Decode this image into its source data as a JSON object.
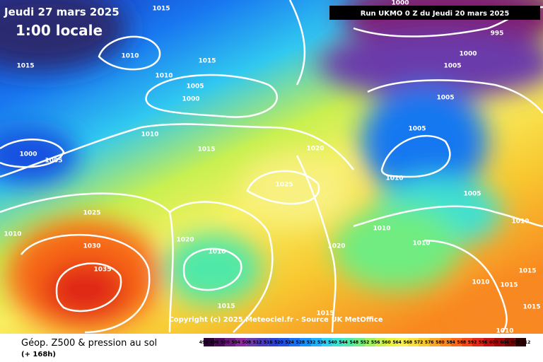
{
  "header": {
    "date": "Jeudi 27 mars 2025",
    "time": "1:00 locale",
    "run": "Run UKMO 0 Z du Jeudi 20 mars 2025"
  },
  "copyright": "Copyright (c) 2025 Meteociel.fr - Source UK MetOffice",
  "legend": {
    "title": "Géop. Z500 & pression au sol",
    "subtitle": "(+ 168h)",
    "ticks": [
      492,
      496,
      500,
      504,
      508,
      512,
      516,
      520,
      524,
      528,
      532,
      536,
      540,
      544,
      548,
      552,
      556,
      560,
      564,
      568,
      572,
      576,
      580,
      584,
      588,
      592,
      596,
      600,
      604,
      608,
      612
    ],
    "colors": [
      "#2a0033",
      "#4a0a5a",
      "#6a1a7a",
      "#8a2a9a",
      "#6a3aaa",
      "#4a3ab8",
      "#3040c8",
      "#2050e0",
      "#1870f0",
      "#1890f8",
      "#20b0f8",
      "#30d0f0",
      "#40e0d0",
      "#50e8a8",
      "#70ec80",
      "#a0f060",
      "#c8f050",
      "#e8f040",
      "#f8f050",
      "#f8e040",
      "#f8c830",
      "#f8a828",
      "#f88820",
      "#f86818",
      "#f04818",
      "#e02818",
      "#c01010",
      "#a00808",
      "#700404",
      "#300000"
    ]
  },
  "isobars": [
    "1015",
    "1015",
    "1010",
    "1015",
    "1010",
    "1005",
    "1000",
    "1010",
    "1000",
    "1005",
    "1015",
    "1020",
    "1025",
    "1025",
    "1010",
    "1020",
    "1030",
    "1010",
    "1035",
    "1020",
    "1015",
    "1015",
    "1000",
    "995",
    "1000",
    "1005",
    "1005",
    "1005",
    "1010",
    "1005",
    "1010",
    "1010",
    "1010",
    "1015",
    "1010",
    "1015",
    "1015",
    "1010"
  ]
}
